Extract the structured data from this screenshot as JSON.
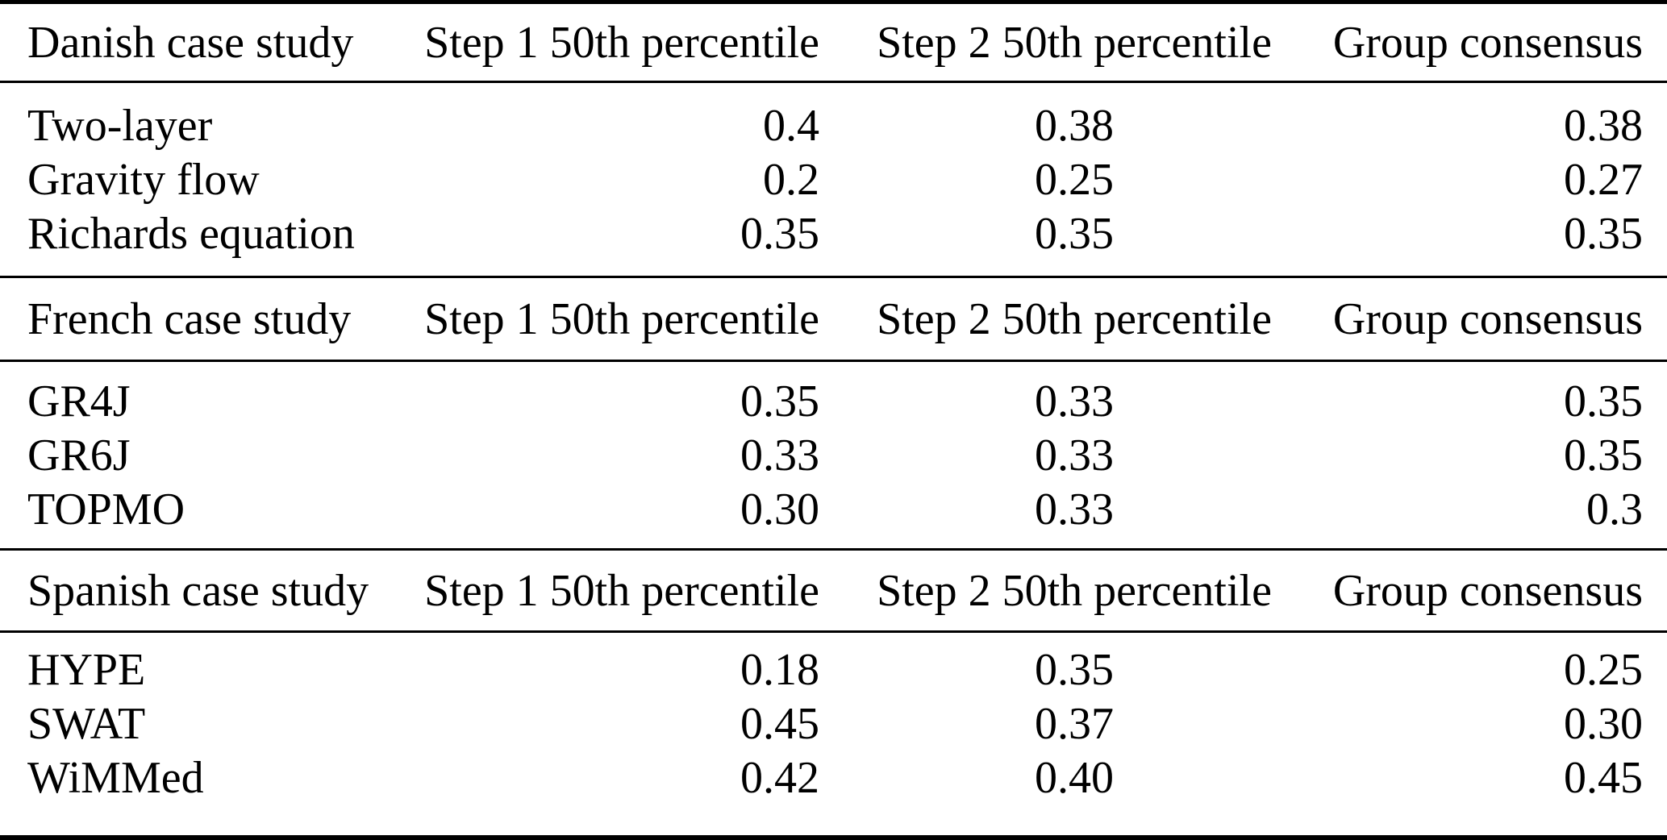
{
  "colors": {
    "text": "#000000",
    "background": "#ffffff",
    "rule": "#000000"
  },
  "table": {
    "sections": [
      {
        "label": "Danish case study",
        "col_headers": [
          "Step 1 50th percentile",
          "Step 2 50th percentile",
          "Group consensus"
        ],
        "rows": [
          {
            "model": "Two-layer",
            "step1": "0.4",
            "step2": "0.38",
            "consensus": "0.38"
          },
          {
            "model": "Gravity flow",
            "step1": "0.2",
            "step2": "0.25",
            "consensus": "0.27"
          },
          {
            "model": "Richards equation",
            "step1": "0.35",
            "step2": "0.35",
            "consensus": "0.35"
          }
        ]
      },
      {
        "label": "French case study",
        "col_headers": [
          "Step 1 50th percentile",
          "Step 2 50th percentile",
          "Group consensus"
        ],
        "rows": [
          {
            "model": "GR4J",
            "step1": "0.35",
            "step2": "0.33",
            "consensus": "0.35"
          },
          {
            "model": "GR6J",
            "step1": "0.33",
            "step2": "0.33",
            "consensus": "0.35"
          },
          {
            "model": "TOPMO",
            "step1": "0.30",
            "step2": "0.33",
            "consensus": "0.3"
          }
        ]
      },
      {
        "label": "Spanish case study",
        "col_headers": [
          "Step 1 50th percentile",
          "Step 2 50th percentile",
          "Group consensus"
        ],
        "rows": [
          {
            "model": "HYPE",
            "step1": "0.18",
            "step2": "0.35",
            "consensus": "0.25"
          },
          {
            "model": "SWAT",
            "step1": "0.45",
            "step2": "0.37",
            "consensus": "0.30"
          },
          {
            "model": "WiMMed",
            "step1": "0.42",
            "step2": "0.40",
            "consensus": "0.45"
          }
        ]
      }
    ]
  }
}
